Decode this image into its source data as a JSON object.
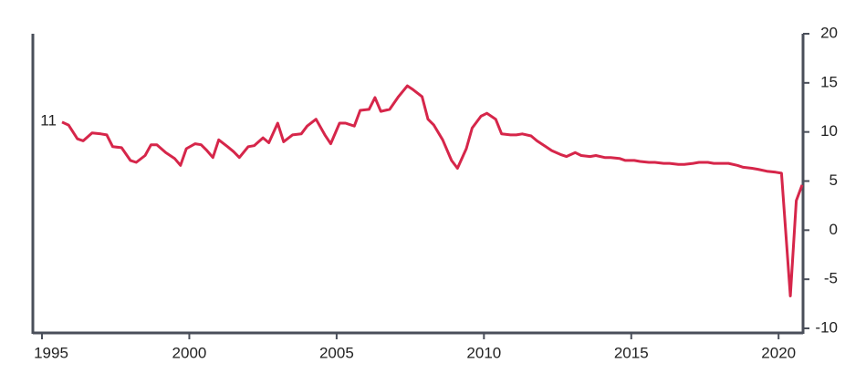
{
  "chart_data": {
    "type": "line",
    "x": [
      1995.68,
      1995.9,
      1996.2,
      1996.4,
      1996.7,
      1997.0,
      1997.2,
      1997.4,
      1997.7,
      1998.0,
      1998.2,
      1998.5,
      1998.7,
      1998.9,
      1999.2,
      1999.5,
      1999.7,
      1999.9,
      2000.2,
      2000.4,
      2000.6,
      2000.8,
      2001.0,
      2001.3,
      2001.5,
      2001.7,
      2002.0,
      2002.2,
      2002.5,
      2002.7,
      2003.0,
      2003.2,
      2003.5,
      2003.8,
      2004.0,
      2004.3,
      2004.6,
      2004.8,
      2005.1,
      2005.3,
      2005.6,
      2005.8,
      2006.1,
      2006.3,
      2006.5,
      2006.8,
      2007.1,
      2007.4,
      2007.6,
      2007.9,
      2008.1,
      2008.3,
      2008.6,
      2008.9,
      2009.1,
      2009.4,
      2009.6,
      2009.9,
      2010.1,
      2010.4,
      2010.6,
      2010.9,
      2011.1,
      2011.3,
      2011.6,
      2011.8,
      2012.1,
      2012.3,
      2012.6,
      2012.8,
      2013.1,
      2013.3,
      2013.6,
      2013.8,
      2014.1,
      2014.3,
      2014.6,
      2014.8,
      2015.1,
      2015.3,
      2015.6,
      2015.8,
      2016.1,
      2016.3,
      2016.6,
      2016.8,
      2017.1,
      2017.3,
      2017.6,
      2017.8,
      2018.1,
      2018.3,
      2018.6,
      2018.8,
      2019.1,
      2019.3,
      2019.6,
      2019.9,
      2020.1,
      2020.4,
      2020.6,
      2020.8
    ],
    "values": [
      11,
      10.7,
      9.3,
      9.1,
      9.9,
      9.8,
      9.7,
      8.5,
      8.4,
      7.1,
      6.9,
      7.6,
      8.7,
      8.7,
      7.9,
      7.3,
      6.6,
      8.3,
      8.8,
      8.7,
      8.1,
      7.4,
      9.2,
      8.5,
      8.0,
      7.4,
      8.5,
      8.6,
      9.4,
      8.9,
      10.9,
      9.0,
      9.7,
      9.8,
      10.6,
      11.3,
      9.7,
      8.8,
      10.9,
      10.9,
      10.6,
      12.2,
      12.3,
      13.5,
      12.1,
      12.3,
      13.6,
      14.7,
      14.3,
      13.6,
      11.3,
      10.7,
      9.2,
      7.1,
      6.3,
      8.3,
      10.4,
      11.6,
      11.9,
      11.3,
      9.8,
      9.7,
      9.7,
      9.8,
      9.6,
      9.1,
      8.5,
      8.1,
      7.7,
      7.5,
      7.9,
      7.6,
      7.5,
      7.6,
      7.4,
      7.4,
      7.3,
      7.1,
      7.1,
      7.0,
      6.9,
      6.9,
      6.8,
      6.8,
      6.7,
      6.7,
      6.8,
      6.9,
      6.9,
      6.8,
      6.8,
      6.8,
      6.6,
      6.4,
      6.3,
      6.2,
      6.0,
      5.9,
      5.8,
      -6.7,
      3.0,
      4.6
    ],
    "color": "#d6264a",
    "xlim": [
      1994.69,
      2020.83
    ],
    "xticks": [
      1995,
      2000,
      2005,
      2010,
      2015,
      2020
    ],
    "ylim": [
      -10,
      20
    ],
    "yticks": [
      -10,
      -5,
      0,
      5,
      10,
      15,
      20
    ],
    "y_axis_side": "right"
  }
}
